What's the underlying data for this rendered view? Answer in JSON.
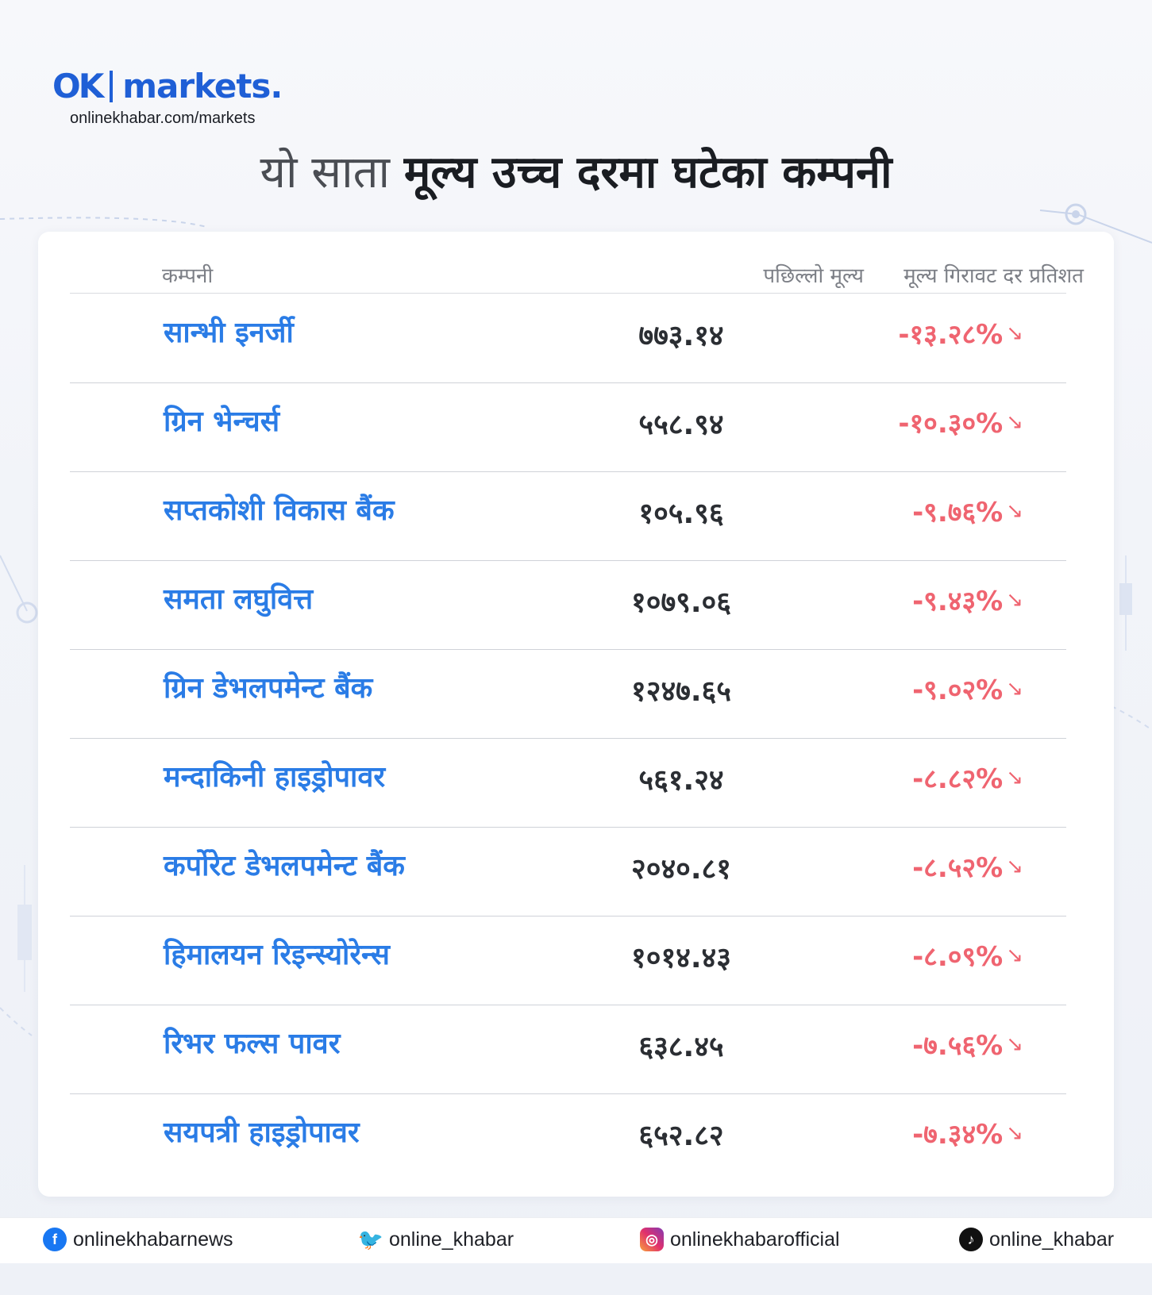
{
  "brand": {
    "logo_ok": "OK",
    "logo_markets": "markets.",
    "url": "onlinekhabar.com/markets"
  },
  "headline": {
    "light": "यो साता ",
    "bold": "मूल्य उच्च दरमा घटेका कम्पनी"
  },
  "table": {
    "headers": {
      "company": "कम्पनी",
      "last_price": "पछिल्लो मूल्य",
      "drop_percent": "मूल्य गिरावट दर प्रतिशत"
    },
    "rows": [
      {
        "company": "सान्भी इनर्जी",
        "price": "७७३.१४",
        "change": "-१३.२८%"
      },
      {
        "company": "ग्रिन भेन्चर्स",
        "price": "५५८.९४",
        "change": "-१०.३०%"
      },
      {
        "company": "सप्तकोशी विकास बैंक",
        "price": "१०५.९६",
        "change": "-९.७६%"
      },
      {
        "company": "समता लघुवित्त",
        "price": "१०७९.०६",
        "change": "-९.४३%"
      },
      {
        "company": "ग्रिन डेभलपमेन्ट बैंक",
        "price": "१२४७.६५",
        "change": "-९.०२%"
      },
      {
        "company": "मन्दाकिनी हाइड्रोपावर",
        "price": "५६१.२४",
        "change": "-८.८२%"
      },
      {
        "company": "कर्पोरेट डेभलपमेन्ट बैंक",
        "price": "२०४०.८१",
        "change": "-८.५२%"
      },
      {
        "company": "हिमालयन रिइन्स्योरेन्स",
        "price": "१०१४.४३",
        "change": "-८.०९%"
      },
      {
        "company": "रिभर फल्स पावर",
        "price": "६३८.४५",
        "change": "-७.५६%"
      },
      {
        "company": "सयपत्री हाइड्रोपावर",
        "price": "६५२.८२",
        "change": "-७.३४%"
      }
    ],
    "arrow_icon": "arrow-down-right-icon",
    "colors": {
      "company": "#2a7ce6",
      "price": "#2b2e33",
      "change": "#ef6470"
    }
  },
  "footer": {
    "facebook": {
      "icon": "facebook-icon",
      "handle": "onlinekhabarnews"
    },
    "twitter": {
      "icon": "twitter-icon",
      "handle": "online_khabar"
    },
    "instagram": {
      "icon": "instagram-icon",
      "handle": "onlinekhabarofficial"
    },
    "tiktok": {
      "icon": "tiktok-icon",
      "handle": "online_khabar"
    }
  },
  "colors": {
    "brand_blue": "#1f5fd6",
    "background": "#f2f4f9"
  }
}
